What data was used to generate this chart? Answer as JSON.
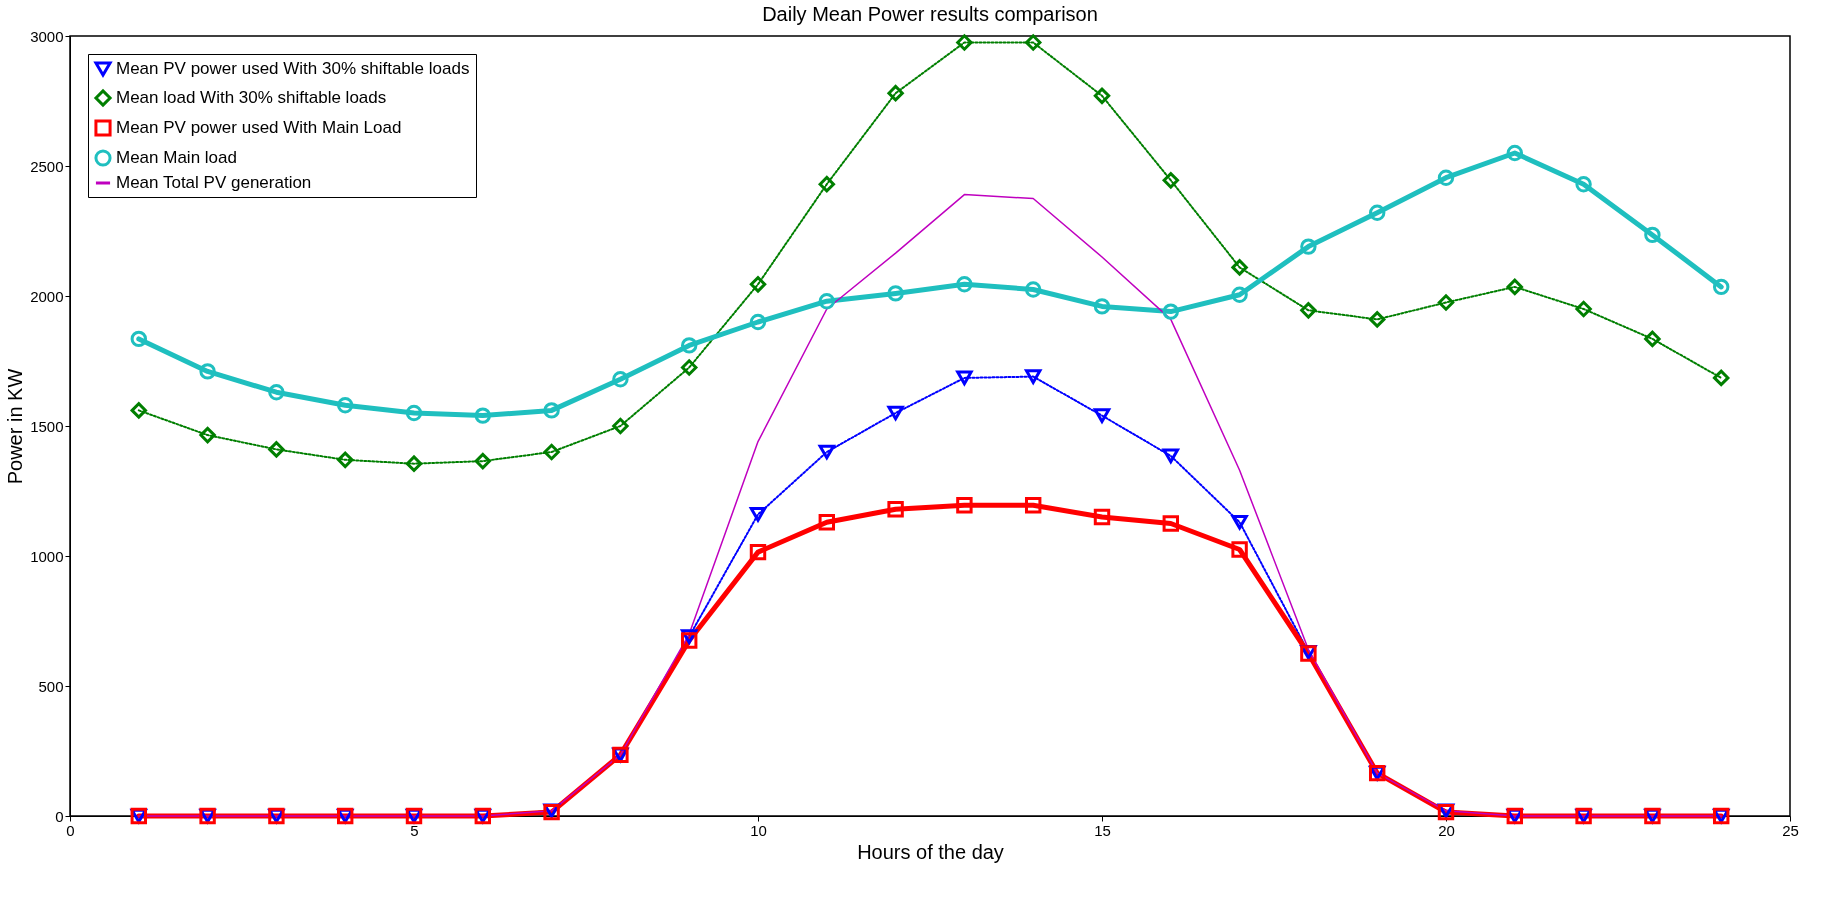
{
  "chart_data": {
    "type": "line",
    "title": "Daily Mean Power results comparison",
    "xlabel": "Hours of the day",
    "ylabel": "Power in KW",
    "x": [
      1,
      2,
      3,
      4,
      5,
      6,
      7,
      8,
      9,
      10,
      11,
      12,
      13,
      14,
      15,
      16,
      17,
      18,
      19,
      20,
      21,
      22,
      23,
      24
    ],
    "xlim": [
      0,
      25
    ],
    "xticks": [
      0,
      5,
      10,
      15,
      20,
      25
    ],
    "ylim": [
      0,
      3000
    ],
    "yticks": [
      0,
      500,
      1000,
      1500,
      2000,
      2500,
      3000
    ],
    "grid": false,
    "legend": "top left",
    "series": [
      {
        "name": "Mean PV power used With 30% shiftable loads",
        "color": "#0000ff",
        "marker": "triangle",
        "line_style": "dotted",
        "values": [
          0,
          0,
          0,
          0,
          0,
          0,
          20,
          235,
          690,
          1160,
          1400,
          1550,
          1685,
          1690,
          1540,
          1385,
          1130,
          630,
          165,
          20,
          0,
          0,
          0,
          0
        ]
      },
      {
        "name": "Mean load With 30% shiftable loads",
        "color": "#007f00",
        "marker": "diamond",
        "line_style": "dotted",
        "values": [
          1560,
          1465,
          1410,
          1370,
          1355,
          1365,
          1400,
          1500,
          1725,
          2045,
          2430,
          2780,
          2975,
          2975,
          2770,
          2445,
          2110,
          1945,
          1910,
          1975,
          2035,
          1950,
          1835,
          1685
        ]
      },
      {
        "name": "Mean PV power used With Main Load",
        "color": "#ff0000",
        "marker": "square",
        "line_style": "solid",
        "values": [
          0,
          0,
          0,
          0,
          0,
          0,
          15,
          235,
          675,
          1015,
          1130,
          1180,
          1195,
          1195,
          1150,
          1125,
          1025,
          625,
          165,
          15,
          0,
          0,
          0,
          0
        ]
      },
      {
        "name": "Mean Main load",
        "color": "#1fbfbf",
        "marker": "circle",
        "line_style": "solid",
        "values": [
          1835,
          1710,
          1630,
          1580,
          1550,
          1540,
          1560,
          1680,
          1810,
          1900,
          1980,
          2010,
          2045,
          2025,
          1960,
          1940,
          2005,
          2190,
          2320,
          2455,
          2550,
          2430,
          2235,
          2035
        ]
      },
      {
        "name": "Mean Total PV generation",
        "color": "#bf00bf",
        "marker": "none",
        "line_style": "solid",
        "values": [
          0,
          0,
          0,
          0,
          0,
          0,
          20,
          235,
          700,
          1440,
          1950,
          2165,
          2390,
          2375,
          2150,
          1910,
          1330,
          640,
          165,
          20,
          0,
          0,
          0,
          0
        ]
      }
    ]
  }
}
